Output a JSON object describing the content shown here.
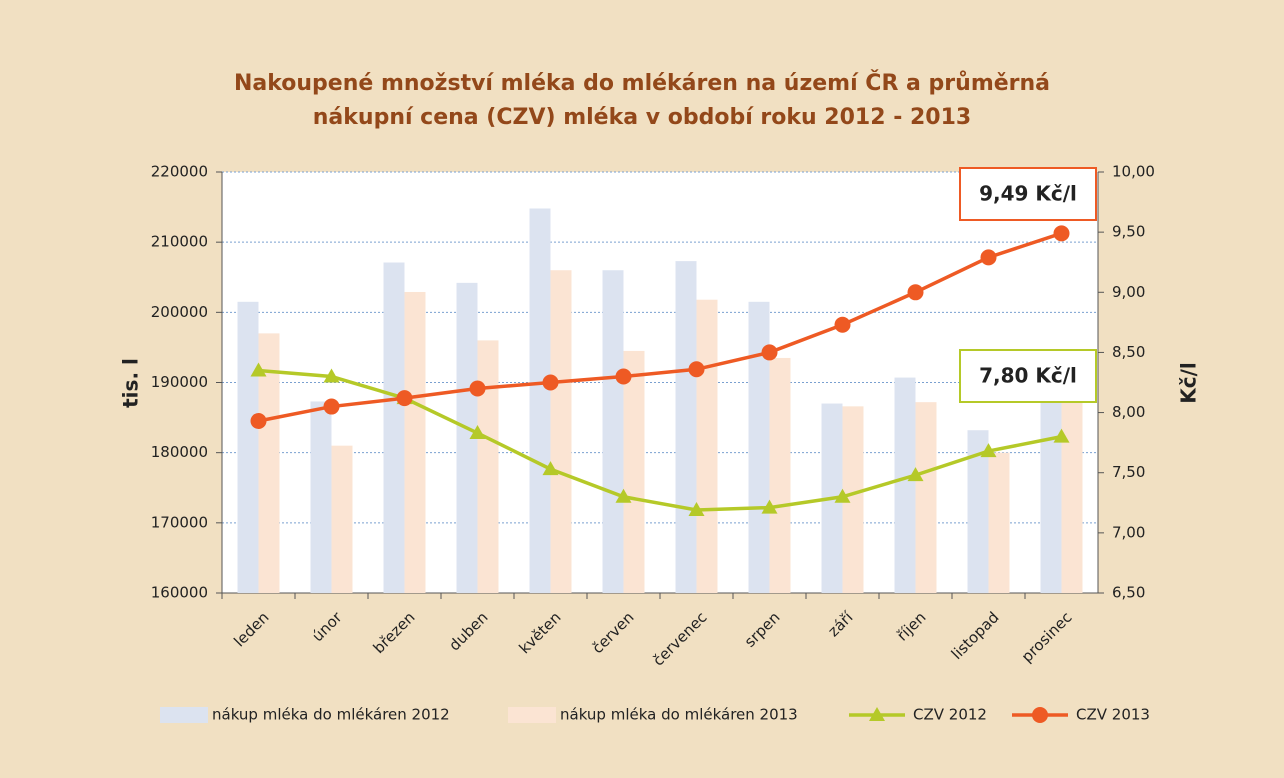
{
  "chart_data": {
    "type": "bar-line",
    "title": [
      "Nakoupené množství mléka do mlékáren na území ČR a průměrná",
      "nákupní cena (CZV) mléka v období roku 2012 - 2013"
    ],
    "ylabel": "tis. l",
    "y2label": "Kč/l",
    "categories": [
      "leden",
      "únor",
      "březen",
      "duben",
      "květen",
      "červen",
      "červenec",
      "srpen",
      "září",
      "říjen",
      "listopad",
      "prosinec"
    ],
    "series": [
      {
        "name": "nákup mléka do mlékáren 2012",
        "kind": "bar",
        "color": "#dce3f0",
        "values": [
          201500,
          187300,
          207100,
          204200,
          214800,
          206000,
          207300,
          201500,
          187000,
          190700,
          183200,
          187500
        ]
      },
      {
        "name": "nákup mléka do mlékáren 2013",
        "kind": "bar",
        "color": "#fbe4d3",
        "values": [
          197000,
          181000,
          202900,
          196000,
          206000,
          194500,
          201800,
          193500,
          186600,
          187200,
          180000,
          188500
        ]
      },
      {
        "name": "CZV 2012",
        "kind": "line",
        "axis": "y2",
        "marker": "triangle",
        "color": "#b5c928",
        "values": [
          8.35,
          8.3,
          8.12,
          7.83,
          7.53,
          7.3,
          7.19,
          7.21,
          7.3,
          7.48,
          7.68,
          7.8
        ]
      },
      {
        "name": "CZV 2013",
        "kind": "line",
        "axis": "y2",
        "marker": "circle",
        "color": "#ee5a24",
        "values": [
          7.93,
          8.05,
          8.12,
          8.2,
          8.25,
          8.3,
          8.36,
          8.5,
          8.73,
          9.0,
          9.29,
          9.49
        ]
      }
    ],
    "ylim": [
      160000,
      220000
    ],
    "yticks": [
      160000,
      170000,
      180000,
      190000,
      200000,
      210000,
      220000
    ],
    "y2lim": [
      6.5,
      10
    ],
    "y2ticks": [
      {
        "value": 6.5,
        "label": "6,50"
      },
      {
        "value": 7,
        "label": "7,00"
      },
      {
        "value": 7.5,
        "label": "7,50"
      },
      {
        "value": 8,
        "label": "8,00"
      },
      {
        "value": 8.5,
        "label": "8,50"
      },
      {
        "value": 9,
        "label": "9,00"
      },
      {
        "value": 9.5,
        "label": "9,50"
      },
      {
        "value": 10,
        "label": "10,00"
      }
    ],
    "grid": true,
    "annotations": [
      {
        "text": "9,49 Kč/l",
        "color": "#ee5a24"
      },
      {
        "text": "7,80 Kč/l",
        "color": "#b5c928"
      }
    ],
    "legend": "bottom"
  }
}
